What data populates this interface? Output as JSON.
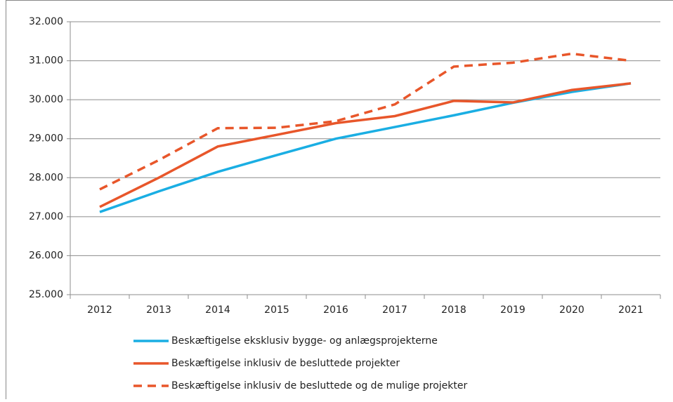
{
  "chart_data": {
    "type": "line",
    "categories": [
      "2012",
      "2013",
      "2014",
      "2015",
      "2016",
      "2017",
      "2018",
      "2019",
      "2020",
      "2021"
    ],
    "series": [
      {
        "name": "Beskæftigelse eksklusiv bygge- og anlægsprojekterne",
        "color": "#1aaee3",
        "dashed": false,
        "values": [
          27120,
          27650,
          28150,
          28580,
          29000,
          29300,
          29600,
          29920,
          30200,
          30420
        ]
      },
      {
        "name": "Beskæftigelse inklusiv de besluttede projekter",
        "color": "#e8562a",
        "dashed": false,
        "values": [
          27250,
          28000,
          28800,
          29100,
          29400,
          29580,
          29970,
          29930,
          30250,
          30420
        ]
      },
      {
        "name": "Beskæftigelse inklusiv de besluttede og de mulige projekter",
        "color": "#e8562a",
        "dashed": true,
        "values": [
          27700,
          28450,
          29270,
          29280,
          29450,
          29880,
          30850,
          30950,
          31180,
          31000
        ]
      }
    ],
    "ylim": [
      25000,
      32000
    ],
    "yticks": [
      {
        "value": 25000,
        "label": "25.000"
      },
      {
        "value": 26000,
        "label": "26.000"
      },
      {
        "value": 27000,
        "label": "27.000"
      },
      {
        "value": 28000,
        "label": "28.000"
      },
      {
        "value": 29000,
        "label": "29.000"
      },
      {
        "value": 30000,
        "label": "30.000"
      },
      {
        "value": 31000,
        "label": "31.000"
      },
      {
        "value": 32000,
        "label": "32.000"
      }
    ],
    "grid": true,
    "legend": "bottom"
  }
}
